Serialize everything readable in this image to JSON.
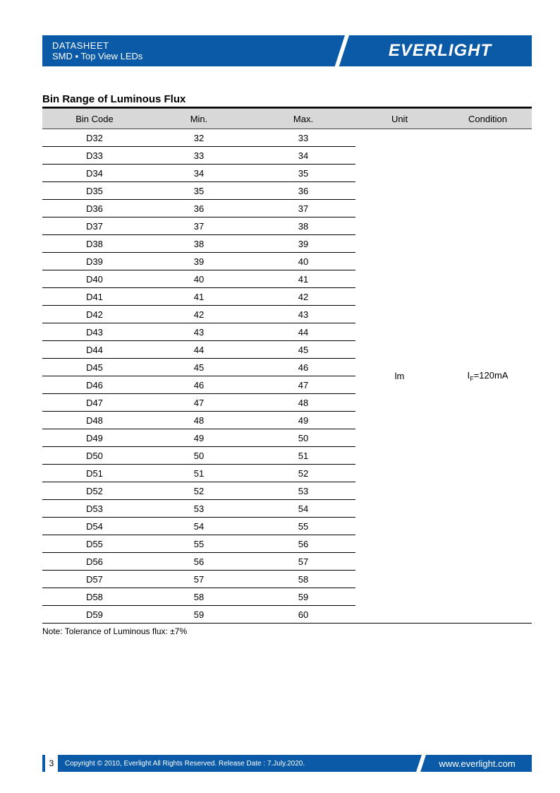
{
  "header": {
    "line1": "DATASHEET",
    "line2_a": "SMD ",
    "line2_b": " Top View LEDs",
    "brand": "EVERLIGHT"
  },
  "section_title": "Bin Range of Luminous Flux",
  "columns": [
    "Bin Code",
    "Min.",
    "Max.",
    "Unit",
    "Condition"
  ],
  "unit": "lm",
  "condition_prefix": "I",
  "condition_sub": "F",
  "condition_suffix": "=120mA",
  "rows": [
    {
      "code": "D32",
      "min": "32",
      "max": "33"
    },
    {
      "code": "D33",
      "min": "33",
      "max": "34"
    },
    {
      "code": "D34",
      "min": "34",
      "max": "35"
    },
    {
      "code": "D35",
      "min": "35",
      "max": "36"
    },
    {
      "code": "D36",
      "min": "36",
      "max": "37"
    },
    {
      "code": "D37",
      "min": "37",
      "max": "38"
    },
    {
      "code": "D38",
      "min": "38",
      "max": "39"
    },
    {
      "code": "D39",
      "min": "39",
      "max": "40"
    },
    {
      "code": "D40",
      "min": "40",
      "max": "41"
    },
    {
      "code": "D41",
      "min": "41",
      "max": "42"
    },
    {
      "code": "D42",
      "min": "42",
      "max": "43"
    },
    {
      "code": "D43",
      "min": "43",
      "max": "44"
    },
    {
      "code": "D44",
      "min": "44",
      "max": "45"
    },
    {
      "code": "D45",
      "min": "45",
      "max": "46"
    },
    {
      "code": "D46",
      "min": "46",
      "max": "47"
    },
    {
      "code": "D47",
      "min": "47",
      "max": "48"
    },
    {
      "code": "D48",
      "min": "48",
      "max": "49"
    },
    {
      "code": "D49",
      "min": "49",
      "max": "50"
    },
    {
      "code": "D50",
      "min": "50",
      "max": "51"
    },
    {
      "code": "D51",
      "min": "51",
      "max": "52"
    },
    {
      "code": "D52",
      "min": "52",
      "max": "53"
    },
    {
      "code": "D53",
      "min": "53",
      "max": "54"
    },
    {
      "code": "D54",
      "min": "54",
      "max": "55"
    },
    {
      "code": "D55",
      "min": "55",
      "max": "56"
    },
    {
      "code": "D56",
      "min": "56",
      "max": "57"
    },
    {
      "code": "D57",
      "min": "57",
      "max": "58"
    },
    {
      "code": "D58",
      "min": "58",
      "max": "59"
    },
    {
      "code": "D59",
      "min": "59",
      "max": "60"
    }
  ],
  "note": "Note: Tolerance of Luminous flux: ±7%",
  "footer": {
    "page": "3",
    "copyright": "Copyright © 2010, Everlight All Rights Reserved. Release Date : 7.July.2020.",
    "site": "www.everlight.com"
  },
  "colors": {
    "brand_blue": "#0a5aa8",
    "header_gray": "#d8d8d8",
    "text": "#000000",
    "white": "#ffffff"
  }
}
